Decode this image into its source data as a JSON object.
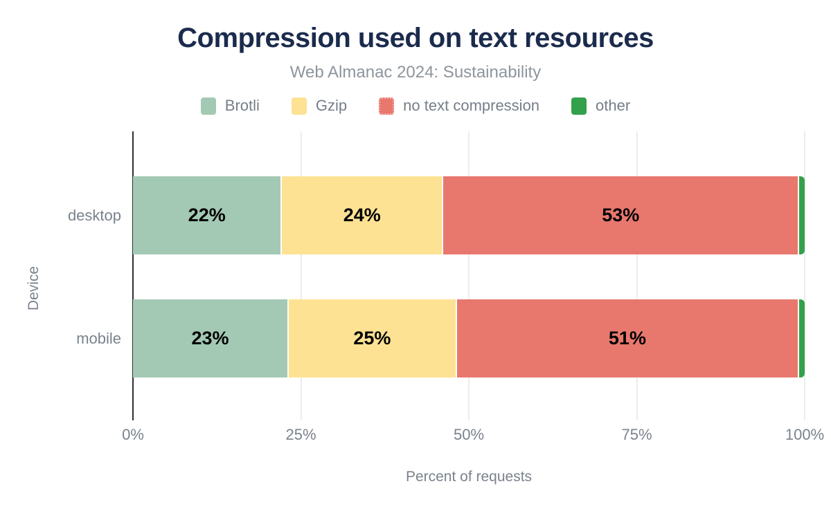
{
  "header": {
    "title": "Compression used on text resources",
    "subtitle": "Web Almanac 2024: Sustainability"
  },
  "chart_data": {
    "type": "bar",
    "orientation": "horizontal",
    "stacked": true,
    "title": "Compression used on text resources",
    "subtitle": "Web Almanac 2024: Sustainability",
    "categories": [
      "desktop",
      "mobile"
    ],
    "series": [
      {
        "name": "Brotli",
        "color": "#a3c9b4",
        "swatch_style": "solid",
        "values": [
          22,
          23
        ]
      },
      {
        "name": "Gzip",
        "color": "#fde293",
        "swatch_style": "solid",
        "values": [
          24,
          25
        ]
      },
      {
        "name": "no text compression",
        "color": "#e8786e",
        "swatch_style": "dotted",
        "values": [
          53,
          51
        ]
      },
      {
        "name": "other",
        "color": "#33a04c",
        "swatch_style": "solid",
        "values": [
          1,
          1
        ]
      }
    ],
    "data_labels": [
      [
        "22%",
        "24%",
        "53%",
        ""
      ],
      [
        "23%",
        "25%",
        "51%",
        ""
      ]
    ],
    "xlabel": "Percent of requests",
    "ylabel": "Device",
    "x_ticks": [
      "0%",
      "25%",
      "50%",
      "75%",
      "100%"
    ],
    "x_tick_positions_pct": [
      0,
      25,
      50,
      75,
      100
    ],
    "xlim": [
      0,
      100
    ],
    "legend_position": "top",
    "grid": true
  },
  "colors": {
    "title": "#1b2b4d",
    "subtitle": "#8d959d",
    "axis_text": "#7a828c",
    "legend_text": "#757e88",
    "gridline": "#ececef",
    "axis_line": "#303035",
    "data_label": "#000000",
    "background": "#ffffff"
  }
}
